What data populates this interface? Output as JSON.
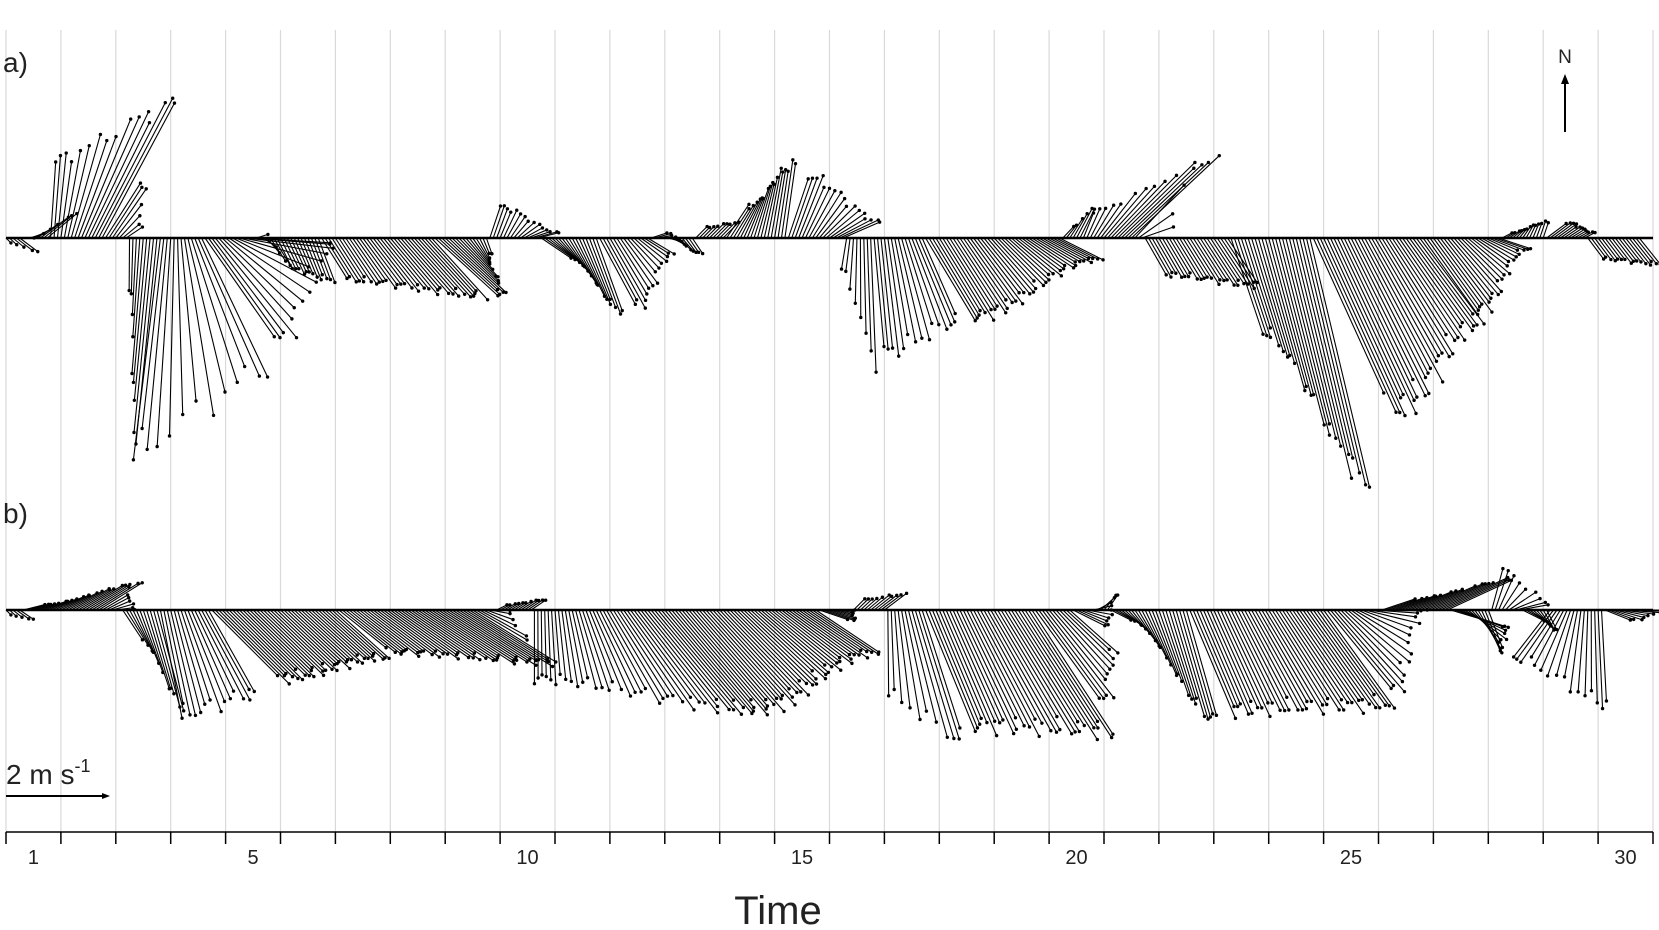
{
  "chart_data": {
    "type": "stick-plot",
    "xlabel": "Time",
    "x_ticks": [
      1,
      5,
      10,
      15,
      20,
      25,
      30
    ],
    "xlim": [
      0.5,
      30.5
    ],
    "grid": "vertical",
    "panel_labels": [
      "a)",
      "b)"
    ],
    "north_label": "N",
    "scale_label": "2 m s",
    "scale_exponent": "-1",
    "scale_value_ms": 2,
    "stick_spacing_days": 0.0625,
    "panels": [
      {
        "label": "a)",
        "segments": [
          {
            "x0": 0.5,
            "x1": 0.8,
            "u0": 0.1,
            "u1": 0.4,
            "v0": -0.1,
            "v1": -0.3
          },
          {
            "x0": 0.8,
            "x1": 1.3,
            "u0": 0.2,
            "u1": 0.6,
            "v0": 0.0,
            "v1": 0.5
          },
          {
            "x0": 1.3,
            "x1": 2.3,
            "u0": 0.1,
            "u1": 1.4,
            "v0": 1.5,
            "v1": 2.6
          },
          {
            "x0": 2.3,
            "x1": 2.7,
            "u0": 0.7,
            "u1": 0.3,
            "v0": 1.1,
            "v1": 0.2
          },
          {
            "x0": 2.7,
            "x1": 3.3,
            "u0": 0.0,
            "u1": -0.4,
            "v0": -0.9,
            "v1": -3.9
          },
          {
            "x0": 3.3,
            "x1": 4.1,
            "u0": -0.5,
            "u1": 1.2,
            "v0": -4.1,
            "v1": -2.5
          },
          {
            "x0": 4.1,
            "x1": 5.0,
            "u0": 1.4,
            "u1": 1.6,
            "v0": -2.0,
            "v1": -0.1
          },
          {
            "x0": 5.0,
            "x1": 5.4,
            "u0": 0.2,
            "u1": 0.3,
            "v0": 0.1,
            "v1": -0.5
          },
          {
            "x0": 5.4,
            "x1": 6.2,
            "u0": 0.3,
            "u1": 0.3,
            "v0": -0.6,
            "v1": -0.8
          },
          {
            "x0": 6.2,
            "x1": 8.3,
            "u0": 0.5,
            "u1": 1.0,
            "v0": -0.8,
            "v1": -1.1
          },
          {
            "x0": 8.3,
            "x1": 9.3,
            "u0": 1.2,
            "u1": 0.1,
            "v0": -1.1,
            "v1": -0.3
          },
          {
            "x0": 9.3,
            "x1": 10.2,
            "u0": 0.2,
            "u1": 0.4,
            "v0": 0.6,
            "v1": 0.1
          },
          {
            "x0": 10.2,
            "x1": 11.3,
            "u0": 0.6,
            "u1": 0.5,
            "v0": -0.4,
            "v1": -1.4
          },
          {
            "x0": 11.3,
            "x1": 12.2,
            "u0": 0.7,
            "u1": 0.5,
            "v0": -1.3,
            "v1": -0.3
          },
          {
            "x0": 12.2,
            "x1": 13.0,
            "u0": 0.3,
            "u1": 0.2,
            "v0": 0.1,
            "v1": -0.3
          },
          {
            "x0": 13.0,
            "x1": 13.6,
            "u0": 0.2,
            "u1": 0.3,
            "v0": 0.2,
            "v1": 0.3
          },
          {
            "x0": 13.6,
            "x1": 14.7,
            "u0": 0.4,
            "u1": 0.2,
            "v0": 0.6,
            "v1": 1.4
          },
          {
            "x0": 14.7,
            "x1": 15.8,
            "u0": 0.4,
            "u1": 0.7,
            "v0": 1.2,
            "v1": 0.3
          },
          {
            "x0": 15.8,
            "x1": 16.3,
            "u0": -0.1,
            "u1": 0.1,
            "v0": -0.6,
            "v1": -2.4
          },
          {
            "x0": 16.3,
            "x1": 17.2,
            "u0": 0.2,
            "u1": 0.7,
            "v0": -2.2,
            "v1": -1.6
          },
          {
            "x0": 17.2,
            "x1": 19.7,
            "u0": 0.9,
            "u1": 0.8,
            "v0": -1.5,
            "v1": -0.4
          },
          {
            "x0": 19.7,
            "x1": 20.1,
            "u0": 0.2,
            "u1": 0.3,
            "v0": 0.2,
            "v1": 0.6
          },
          {
            "x0": 20.1,
            "x1": 21.0,
            "u0": 0.2,
            "u1": 1.6,
            "v0": 0.5,
            "v1": 1.5
          },
          {
            "x0": 21.0,
            "x1": 21.2,
            "u0": 1.0,
            "u1": 0.6,
            "v0": 1.2,
            "v1": 0.2
          },
          {
            "x0": 21.2,
            "x1": 22.8,
            "u0": 0.4,
            "u1": 0.6,
            "v0": -0.7,
            "v1": -0.9
          },
          {
            "x0": 22.8,
            "x1": 24.3,
            "u0": 0.6,
            "u1": 1.1,
            "v0": -1.8,
            "v1": -4.6
          },
          {
            "x0": 24.3,
            "x1": 26.3,
            "u0": 1.5,
            "u1": 1.2,
            "v0": -3.3,
            "v1": -1.6
          },
          {
            "x0": 26.3,
            "x1": 27.7,
            "u0": 1.0,
            "u1": 0.6,
            "v0": -1.4,
            "v1": -0.2
          },
          {
            "x0": 27.7,
            "x1": 28.5,
            "u0": 0.2,
            "u1": 0.1,
            "v0": 0.1,
            "v1": 0.3
          },
          {
            "x0": 28.5,
            "x1": 29.3,
            "u0": 0.4,
            "u1": 0.2,
            "v0": 0.3,
            "v1": 0.1
          },
          {
            "x0": 29.3,
            "x1": 30.3,
            "u0": 0.3,
            "u1": 0.4,
            "v0": -0.4,
            "v1": -0.5
          }
        ]
      },
      {
        "label": "b)",
        "segments": [
          {
            "x0": 0.5,
            "x1": 0.8,
            "u0": 0.1,
            "u1": 0.3,
            "v0": -0.1,
            "v1": -0.2
          },
          {
            "x0": 0.8,
            "x1": 2.2,
            "u0": 0.4,
            "u1": 0.8,
            "v0": 0.1,
            "v1": 0.5
          },
          {
            "x0": 2.2,
            "x1": 2.6,
            "u0": 0.5,
            "u1": 0.3,
            "v0": 0.3,
            "v1": 0.0
          },
          {
            "x0": 2.6,
            "x1": 3.3,
            "u0": 0.4,
            "u1": 0.5,
            "v0": -0.6,
            "v1": -1.9
          },
          {
            "x0": 3.3,
            "x1": 4.2,
            "u0": 0.4,
            "u1": 0.9,
            "v0": -2.0,
            "v1": -1.6
          },
          {
            "x0": 4.2,
            "x1": 6.5,
            "u0": 1.3,
            "u1": 1.0,
            "v0": -1.3,
            "v1": -0.9
          },
          {
            "x0": 6.5,
            "x1": 9.0,
            "u0": 1.0,
            "u1": 1.6,
            "v0": -0.8,
            "v1": -1.0
          },
          {
            "x0": 9.0,
            "x1": 9.4,
            "u0": 1.0,
            "u1": 0.3,
            "v0": -0.6,
            "v1": 0.0
          },
          {
            "x0": 9.4,
            "x1": 10.1,
            "u0": 0.2,
            "u1": 0.3,
            "v0": 0.1,
            "v1": 0.2
          },
          {
            "x0": 10.1,
            "x1": 12.5,
            "u0": 0.0,
            "u1": 1.6,
            "v0": -1.3,
            "v1": -1.9
          },
          {
            "x0": 12.5,
            "x1": 15.3,
            "u0": 1.6,
            "u1": 1.2,
            "v0": -1.9,
            "v1": -0.8
          },
          {
            "x0": 15.3,
            "x1": 15.9,
            "u0": 0.6,
            "u1": 0.1,
            "v0": -0.2,
            "v1": 0.0
          },
          {
            "x0": 15.9,
            "x1": 16.5,
            "u0": 0.2,
            "u1": 0.4,
            "v0": 0.2,
            "v1": 0.3
          },
          {
            "x0": 16.5,
            "x1": 17.2,
            "u0": 0.0,
            "u1": 0.8,
            "v0": -1.6,
            "v1": -2.5
          },
          {
            "x0": 17.2,
            "x1": 19.2,
            "u0": 0.9,
            "u1": 1.5,
            "v0": -2.2,
            "v1": -2.3
          },
          {
            "x0": 19.2,
            "x1": 19.9,
            "u0": 1.3,
            "u1": 0.9,
            "v0": -1.8,
            "v1": -0.8
          },
          {
            "x0": 19.9,
            "x1": 20.6,
            "u0": 0.6,
            "u1": 0.2,
            "v0": -0.3,
            "v1": 0.3
          },
          {
            "x0": 20.6,
            "x1": 22.0,
            "u0": 0.4,
            "u1": 0.6,
            "v0": -0.2,
            "v1": -2.1
          },
          {
            "x0": 22.0,
            "x1": 24.5,
            "u0": 0.8,
            "u1": 1.3,
            "v0": -1.9,
            "v1": -1.8
          },
          {
            "x0": 24.5,
            "x1": 25.5,
            "u0": 1.3,
            "u1": 0.9,
            "v0": -1.6,
            "v1": 0.0
          },
          {
            "x0": 25.5,
            "x1": 26.8,
            "u0": 0.6,
            "u1": 1.3,
            "v0": 0.2,
            "v1": 0.6
          },
          {
            "x0": 26.8,
            "x1": 27.5,
            "u0": 1.0,
            "u1": 0.3,
            "v0": -0.3,
            "v1": -0.8
          },
          {
            "x0": 27.5,
            "x1": 28.1,
            "u0": 0.2,
            "u1": 0.6,
            "v0": 0.8,
            "v1": 0.1
          },
          {
            "x0": 28.1,
            "x1": 28.6,
            "u0": 0.4,
            "u1": 0.2,
            "v0": -0.2,
            "v1": -0.4
          },
          {
            "x0": 28.6,
            "x1": 29.6,
            "u0": -0.7,
            "u1": 0.1,
            "v0": -0.9,
            "v1": -1.8
          },
          {
            "x0": 29.6,
            "x1": 30.2,
            "u0": 0.5,
            "u1": 0.7,
            "v0": -0.2,
            "v1": 0.0
          }
        ]
      }
    ]
  }
}
